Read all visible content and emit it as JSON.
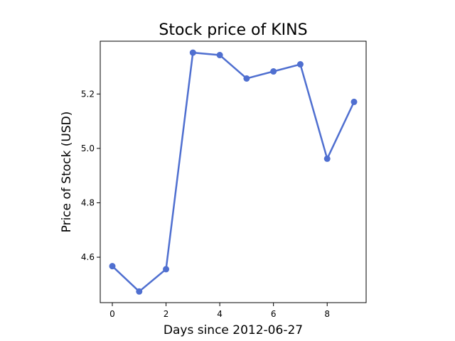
{
  "chart_data": {
    "type": "line",
    "title": "Stock price of KINS",
    "xlabel": "Days since 2012-06-27",
    "ylabel": "Price of Stock (USD)",
    "x": [
      0,
      1,
      2,
      3,
      4,
      5,
      6,
      7,
      8,
      9
    ],
    "series": [
      {
        "values": [
          4.567,
          4.474,
          4.556,
          5.352,
          5.343,
          5.257,
          5.283,
          5.309,
          4.962,
          5.171
        ]
      }
    ],
    "xlim": [
      -0.45,
      9.45
    ],
    "ylim": [
      4.433,
      5.394
    ],
    "xticks": [
      0,
      2,
      4,
      6,
      8
    ],
    "yticks": [
      4.6,
      4.8,
      5.0,
      5.2
    ],
    "ytick_labels": [
      "4.6",
      "4.8",
      "5.0",
      "5.2"
    ],
    "grid": false,
    "color": "#4f6fd0"
  }
}
